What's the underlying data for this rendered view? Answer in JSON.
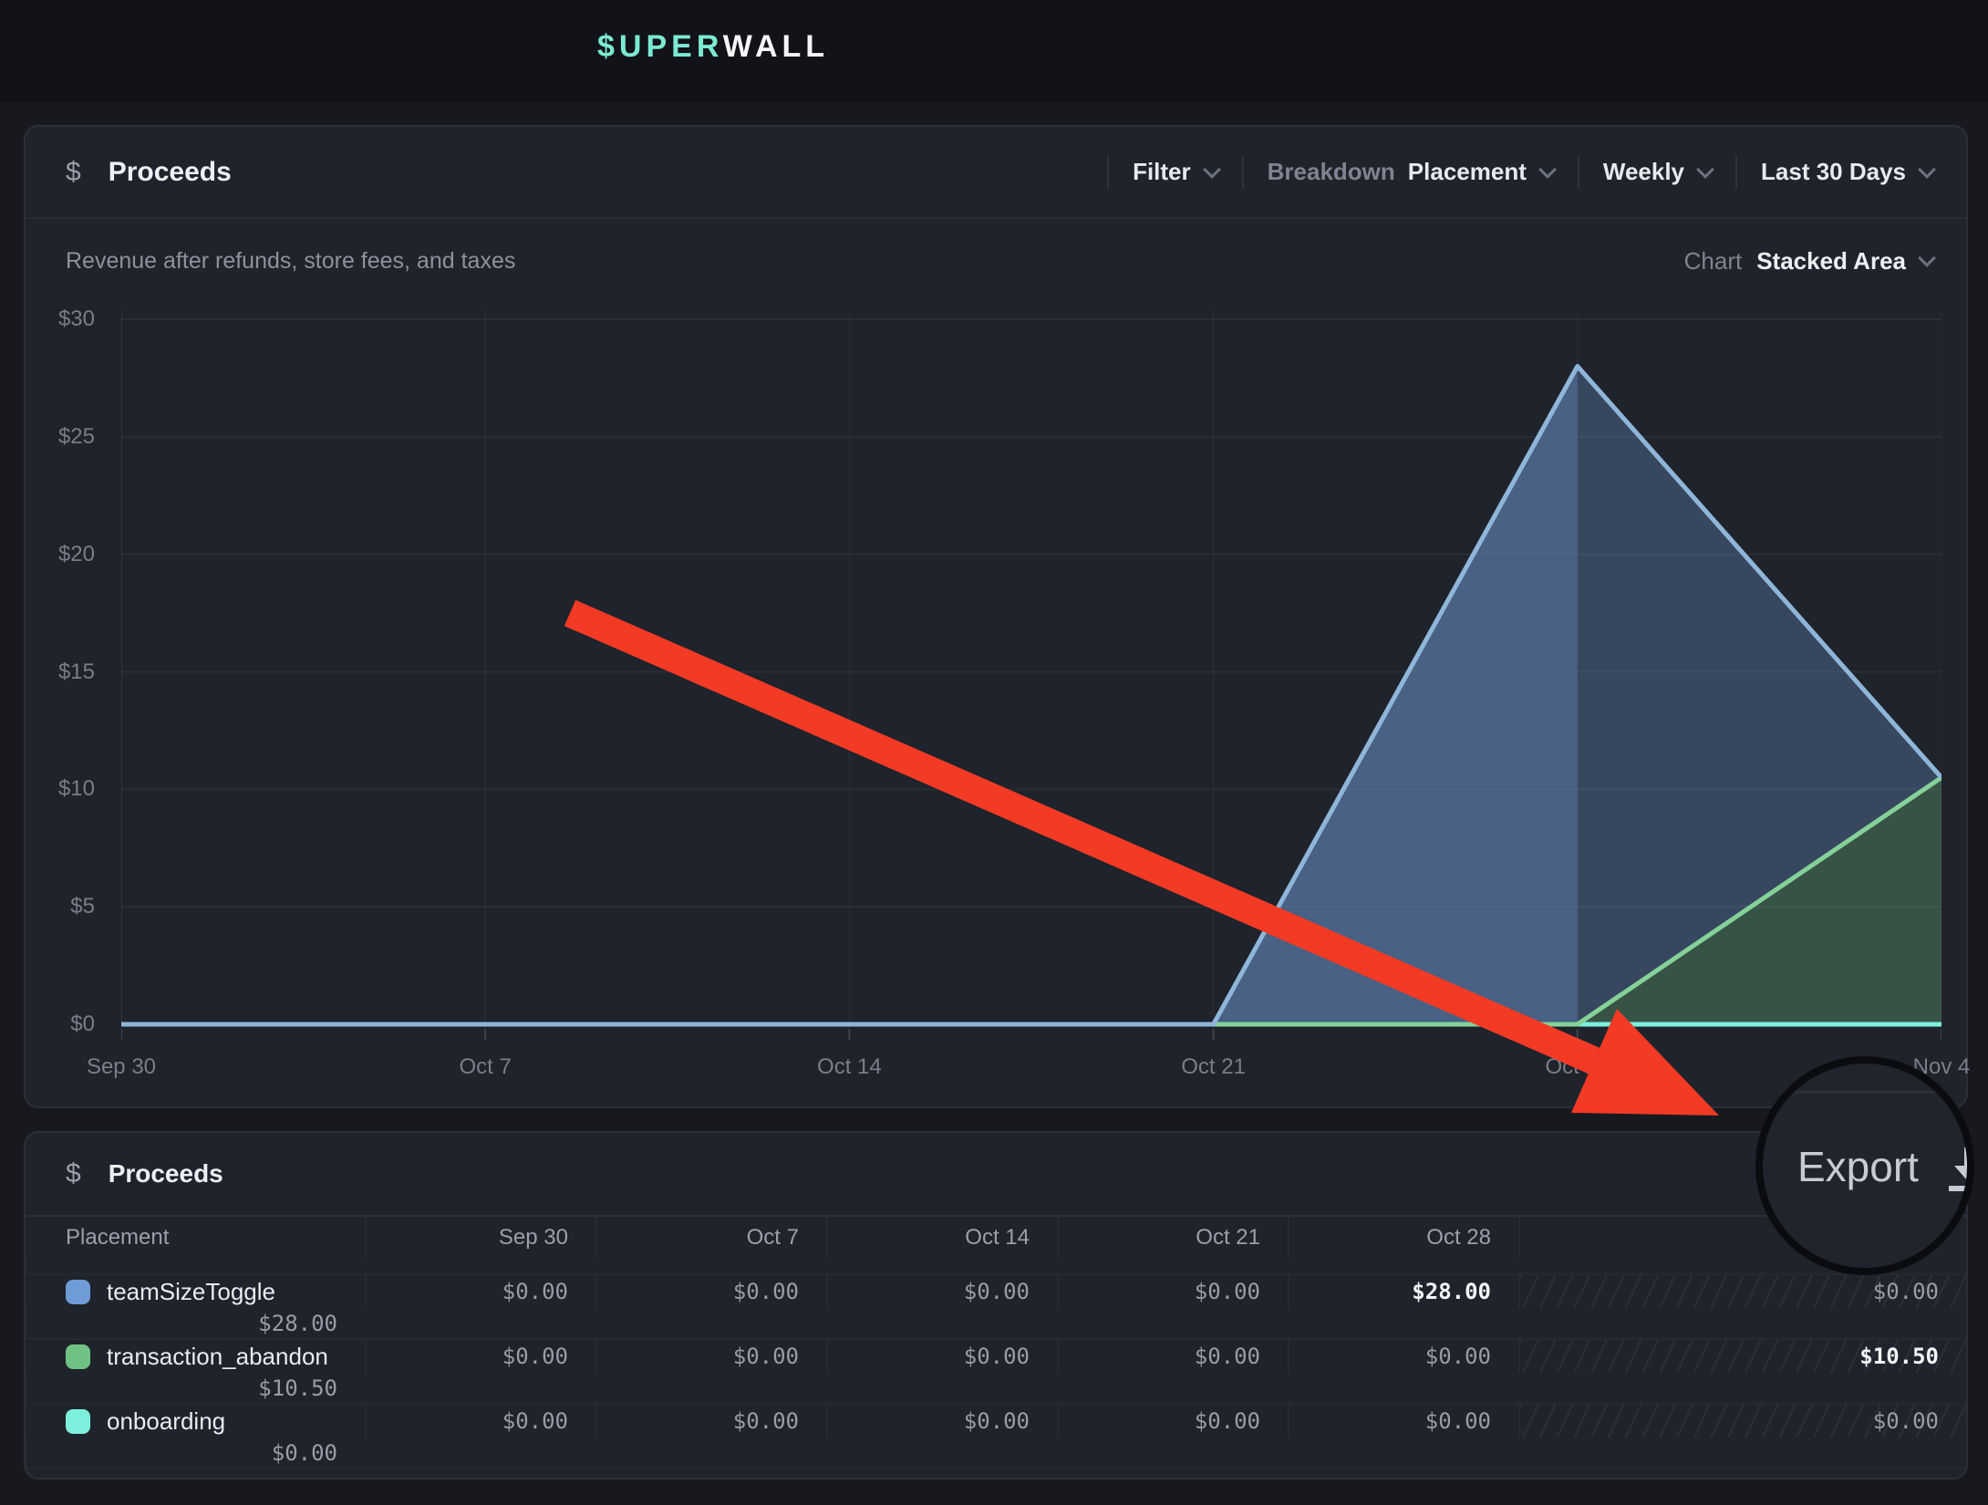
{
  "topbar": {
    "logo_prefix": "$UPER",
    "logo_suffix": "WALL"
  },
  "chart_panel": {
    "icon": "dollar-icon",
    "title": "Proceeds",
    "subtitle": "Revenue after refunds, store fees, and taxes",
    "controls": {
      "filter": "Filter",
      "breakdown_label": "Breakdown",
      "breakdown_value": "Placement",
      "interval": "Weekly",
      "range": "Last 30 Days",
      "chart_label": "Chart",
      "chart_type": "Stacked Area"
    }
  },
  "chart_data": {
    "type": "area",
    "stacked": true,
    "x": [
      "Sep 30",
      "Oct 7",
      "Oct 14",
      "Oct 21",
      "Oct 28",
      "Nov 4"
    ],
    "series": [
      {
        "name": "teamSizeToggle",
        "color": "#6f9cd6",
        "line_color": "#8fb6d9",
        "values": [
          0,
          0,
          0,
          0,
          28,
          0
        ]
      },
      {
        "name": "transaction_abandon",
        "color": "#6fc281",
        "line_color": "#85d199",
        "values": [
          0,
          0,
          0,
          0,
          0,
          10.5
        ]
      },
      {
        "name": "onboarding",
        "color": "#7df0dd",
        "line_color": "#7df0dd",
        "values": [
          0,
          0,
          0,
          0,
          0,
          0
        ]
      }
    ],
    "ylim": [
      0,
      30
    ],
    "ytick_labels": [
      "$0",
      "$5",
      "$10",
      "$15",
      "$20",
      "$25",
      "$30"
    ],
    "incomplete_period_start_index": 4,
    "grid": true,
    "legend_position": "table-below"
  },
  "table": {
    "icon": "dollar-icon",
    "title": "Proceeds",
    "export_label": "Export",
    "columns": [
      "Placement",
      "Sep 30",
      "Oct 7",
      "Oct 14",
      "Oct 21",
      "Oct 28",
      "Nov 4",
      ""
    ],
    "hatched_column": "Nov 4",
    "rows": [
      {
        "name": "teamSizeToggle",
        "color": "#6f9cd6",
        "values": [
          "$0.00",
          "$0.00",
          "$0.00",
          "$0.00",
          "$28.00",
          "$0.00"
        ],
        "total": "$28.00",
        "bold_index": 4
      },
      {
        "name": "transaction_abandon",
        "color": "#6fc281",
        "values": [
          "$0.00",
          "$0.00",
          "$0.00",
          "$0.00",
          "$0.00",
          "$10.50"
        ],
        "total": "$10.50",
        "bold_index": 5
      },
      {
        "name": "onboarding",
        "color": "#7df0dd",
        "values": [
          "$0.00",
          "$0.00",
          "$0.00",
          "$0.00",
          "$0.00",
          "$0.00"
        ],
        "total": "$0.00",
        "bold_index": -1
      }
    ]
  },
  "annotation": {
    "arrow_color": "#f23a25",
    "magnified_control": "Export"
  },
  "colors": {
    "accent_teal": "#7ce9d3",
    "page_bg": "#17191e",
    "panel_bg": "#1f232b",
    "arrow_red": "#f23a25"
  }
}
